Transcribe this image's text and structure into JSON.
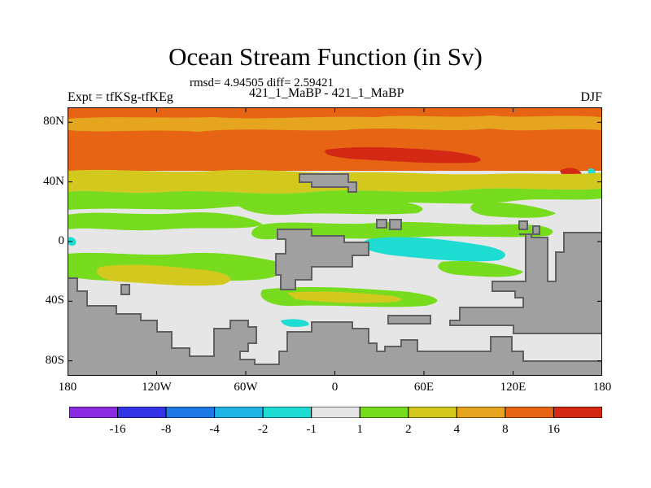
{
  "title": "Ocean Stream Function (in Sv)",
  "stats": "rmsd= 4.94505 diff= 2.59421",
  "expt": "Expt = tfKSg-tfKEg",
  "cases": "421_1_MaBP - 421_1_MaBP",
  "season": "DJF",
  "axes": {
    "y_ticks": [
      {
        "label": "80N",
        "lat": 80
      },
      {
        "label": "40N",
        "lat": 40
      },
      {
        "label": "0",
        "lat": 0
      },
      {
        "label": "40S",
        "lat": -40
      },
      {
        "label": "80S",
        "lat": -80
      }
    ],
    "x_ticks": [
      {
        "label": "180",
        "lon": -180
      },
      {
        "label": "120W",
        "lon": -120
      },
      {
        "label": "60W",
        "lon": -60
      },
      {
        "label": "0",
        "lon": 0
      },
      {
        "label": "60E",
        "lon": 60
      },
      {
        "label": "120E",
        "lon": 120
      },
      {
        "label": "180",
        "lon": 180
      }
    ],
    "lat_range": [
      -90,
      90
    ],
    "lon_range": [
      -180,
      180
    ]
  },
  "colorbar": {
    "colors": [
      "#8a2be2",
      "#3232e6",
      "#1e78e6",
      "#1eb4e6",
      "#1edcd2",
      "#e6e6e6",
      "#78dc1e",
      "#d2c81e",
      "#e6a51e",
      "#e66414",
      "#d22814"
    ],
    "labels": [
      "-16",
      "-8",
      "-4",
      "-2",
      "-1",
      "1",
      "2",
      "4",
      "8",
      "16"
    ]
  },
  "land_color": "#a0a0a0"
}
